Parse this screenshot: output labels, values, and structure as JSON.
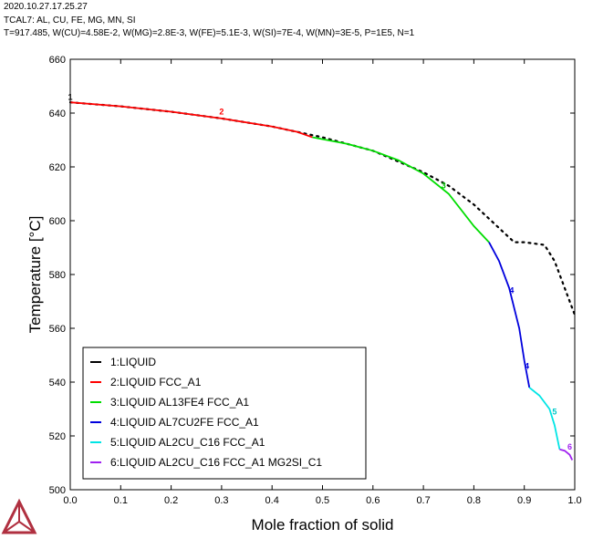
{
  "header": {
    "line1": "2020.10.27.17.25.27",
    "line2": "TCAL7: AL, CU, FE, MG, MN, SI",
    "line3": "T=917.485, W(CU)=4.58E-2, W(MG)=2.8E-3, W(FE)=5.1E-3, W(SI)=7E-4, W(MN)=3E-5, P=1E5, N=1"
  },
  "logo": {
    "name": "triangle-logo-icon"
  },
  "chart_data": {
    "type": "line",
    "title": "",
    "xlabel": "Mole fraction of solid",
    "ylabel": "Temperature [°C]",
    "xlim": [
      0,
      1.0
    ],
    "ylim": [
      500,
      660
    ],
    "xticks": [
      0.0,
      0.1,
      0.2,
      0.3,
      0.4,
      0.5,
      0.6,
      0.7,
      0.8,
      0.9,
      1.0
    ],
    "xtick_labels": [
      "0.0",
      "0.1",
      "0.2",
      "0.3",
      "0.4",
      "0.5",
      "0.6",
      "0.7",
      "0.8",
      "0.9",
      "1.0"
    ],
    "yticks": [
      500,
      520,
      540,
      560,
      580,
      600,
      620,
      640,
      660
    ],
    "ytick_labels": [
      "500",
      "520",
      "540",
      "560",
      "580",
      "600",
      "620",
      "640",
      "660"
    ],
    "grid": false,
    "legend_position": "bottom-left",
    "equilibrium_curve": {
      "style": "dotted",
      "color": "#000000",
      "x": [
        0.0,
        0.1,
        0.2,
        0.3,
        0.4,
        0.5,
        0.6,
        0.7,
        0.75,
        0.8,
        0.84,
        0.88,
        0.9,
        0.94,
        0.96,
        0.98,
        1.0
      ],
      "y": [
        644,
        642.5,
        640.5,
        638,
        635,
        631,
        626,
        618,
        613,
        606,
        599,
        592,
        592,
        591,
        585,
        575,
        565
      ]
    },
    "series": [
      {
        "name": "1:LIQUID",
        "color": "#000000",
        "x": [
          0.0,
          0.002
        ],
        "y": [
          644,
          644
        ]
      },
      {
        "name": "2:LIQUID FCC_A1",
        "color": "#ff0000",
        "x": [
          0.0,
          0.1,
          0.2,
          0.3,
          0.4,
          0.45,
          0.48
        ],
        "y": [
          644,
          642.5,
          640.5,
          638,
          635,
          633,
          631
        ]
      },
      {
        "name": "3:LIQUID AL13FE4 FCC_A1",
        "color": "#00dd00",
        "x": [
          0.48,
          0.55,
          0.6,
          0.65,
          0.7,
          0.75,
          0.8,
          0.83
        ],
        "y": [
          631,
          628.5,
          626,
          622.5,
          617.5,
          610,
          598,
          592
        ]
      },
      {
        "name": "4:LIQUID AL7CU2FE FCC_A1",
        "color": "#0000dd",
        "x": [
          0.83,
          0.85,
          0.87,
          0.89,
          0.9,
          0.91
        ],
        "y": [
          592,
          585,
          575,
          560,
          548,
          538
        ]
      },
      {
        "name": "5:LIQUID AL2CU_C16 FCC_A1",
        "color": "#00e5e5",
        "x": [
          0.91,
          0.93,
          0.95,
          0.96,
          0.97
        ],
        "y": [
          538,
          535,
          530,
          524,
          515
        ]
      },
      {
        "name": "6:LIQUID AL2CU_C16 FCC_A1 MG2SI_C1",
        "color": "#a020f0",
        "x": [
          0.97,
          0.98,
          0.99,
          0.995
        ],
        "y": [
          515,
          514.5,
          513,
          511
        ]
      }
    ],
    "annotations": [
      {
        "text": "1",
        "x": 0.0,
        "y": 645,
        "color": "#000000"
      },
      {
        "text": "2",
        "x": 0.3,
        "y": 639.5,
        "color": "#ff0000"
      },
      {
        "text": "3",
        "x": 0.74,
        "y": 612,
        "color": "#00c000"
      },
      {
        "text": "4",
        "x": 0.875,
        "y": 573,
        "color": "#0000dd"
      },
      {
        "text": "4",
        "x": 0.905,
        "y": 545,
        "color": "#0000dd"
      },
      {
        "text": "5",
        "x": 0.96,
        "y": 528,
        "color": "#00c8c8"
      },
      {
        "text": "6",
        "x": 0.99,
        "y": 515,
        "color": "#a020f0"
      }
    ]
  }
}
